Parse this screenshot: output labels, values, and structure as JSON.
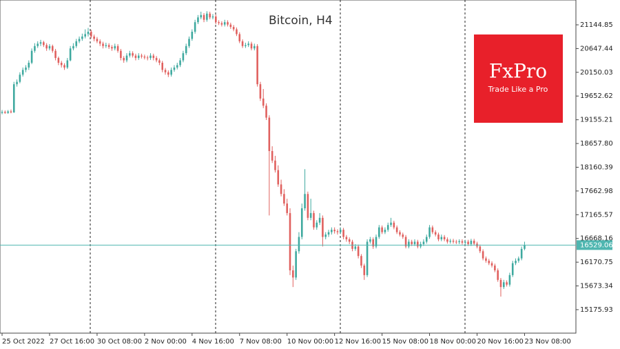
{
  "chart_data": {
    "type": "candlestick",
    "title": "Bitcoin, H4",
    "up_color": "#3ea99f",
    "down_color": "#e0605e",
    "ylim": [
      14684,
      21665
    ],
    "xlim": [
      -0.7,
      193.3
    ],
    "yticks": [
      21144.85,
      20647.44,
      20150.03,
      19652.62,
      19155.21,
      {
        "value": 18657.8,
        "label": "18657.80"
      },
      18160.39,
      17662.98,
      17165.57,
      16668.16,
      16170.75,
      15673.34,
      15175.93
    ],
    "xticks": [
      {
        "value": 0,
        "label": "25 Oct 2022"
      },
      {
        "value": 16,
        "label": "27 Oct 16:00"
      },
      {
        "value": 32,
        "label": "30 Oct 08:00"
      },
      {
        "value": 48,
        "label": "2 Nov 00:00"
      },
      {
        "value": 64,
        "label": "4 Nov 16:00"
      },
      {
        "value": 80,
        "label": "7 Nov 08:00"
      },
      {
        "value": 96,
        "label": "10 Nov 00:00"
      },
      {
        "value": 112,
        "label": "12 Nov 16:00"
      },
      {
        "value": 128,
        "label": "15 Nov 08:00"
      },
      {
        "value": 144,
        "label": "18 Nov 00:00"
      },
      {
        "value": 160,
        "label": "20 Nov 16:00"
      },
      {
        "value": 176,
        "label": "23 Nov 08:00"
      }
    ],
    "last_price": 16529.06,
    "last_price_color": "#4fb6b0",
    "ohlc": [
      [
        19300,
        19360,
        19270,
        19320
      ],
      [
        19320,
        19350,
        19280,
        19300
      ],
      [
        19300,
        19360,
        19280,
        19330
      ],
      [
        19330,
        19370,
        19290,
        19310
      ],
      [
        19310,
        19950,
        19300,
        19900
      ],
      [
        19900,
        20000,
        19850,
        19950
      ],
      [
        19950,
        20150,
        19920,
        20100
      ],
      [
        20100,
        20250,
        20060,
        20200
      ],
      [
        20200,
        20300,
        20150,
        20250
      ],
      [
        20250,
        20400,
        20200,
        20350
      ],
      [
        20350,
        20650,
        20320,
        20600
      ],
      [
        20600,
        20760,
        20560,
        20700
      ],
      [
        20700,
        20800,
        20660,
        20750
      ],
      [
        20750,
        20830,
        20700,
        20780
      ],
      [
        20780,
        20810,
        20680,
        20720
      ],
      [
        20720,
        20760,
        20600,
        20650
      ],
      [
        20650,
        20740,
        20610,
        20700
      ],
      [
        20700,
        20730,
        20560,
        20600
      ],
      [
        20600,
        20640,
        20400,
        20450
      ],
      [
        20450,
        20480,
        20300,
        20350
      ],
      [
        20350,
        20390,
        20250,
        20300
      ],
      [
        20300,
        20340,
        20200,
        20250
      ],
      [
        20250,
        20450,
        20220,
        20400
      ],
      [
        20400,
        20700,
        20380,
        20650
      ],
      [
        20650,
        20760,
        20610,
        20700
      ],
      [
        20700,
        20850,
        20660,
        20800
      ],
      [
        20800,
        20900,
        20760,
        20850
      ],
      [
        20850,
        20960,
        20810,
        20900
      ],
      [
        20900,
        21050,
        20860,
        20950
      ],
      [
        20950,
        21080,
        20900,
        21000
      ],
      [
        21000,
        21040,
        20860,
        20900
      ],
      [
        20900,
        20940,
        20800,
        20850
      ],
      [
        20850,
        20890,
        20760,
        20800
      ],
      [
        20800,
        20840,
        20700,
        20750
      ],
      [
        20750,
        20790,
        20650,
        20700
      ],
      [
        20700,
        20770,
        20660,
        20720
      ],
      [
        20720,
        20760,
        20640,
        20680
      ],
      [
        20680,
        20720,
        20600,
        20650
      ],
      [
        20650,
        20750,
        20610,
        20700
      ],
      [
        20700,
        20740,
        20560,
        20600
      ],
      [
        20600,
        20640,
        20400,
        20450
      ],
      [
        20450,
        20490,
        20350,
        20400
      ],
      [
        20400,
        20550,
        20360,
        20500
      ],
      [
        20500,
        20600,
        20460,
        20550
      ],
      [
        20550,
        20590,
        20460,
        20500
      ],
      [
        20500,
        20540,
        20400,
        20450
      ],
      [
        20450,
        20550,
        20410,
        20500
      ],
      [
        20500,
        20540,
        20440,
        20480
      ],
      [
        20480,
        20520,
        20420,
        20460
      ],
      [
        20460,
        20500,
        20400,
        20450
      ],
      [
        20450,
        20550,
        20410,
        20500
      ],
      [
        20500,
        20540,
        20400,
        20450
      ],
      [
        20450,
        20490,
        20360,
        20400
      ],
      [
        20400,
        20440,
        20300,
        20350
      ],
      [
        20350,
        20390,
        20150,
        20200
      ],
      [
        20200,
        20240,
        20100,
        20150
      ],
      [
        20150,
        20190,
        20050,
        20100
      ],
      [
        20100,
        20250,
        20060,
        20200
      ],
      [
        20200,
        20300,
        20160,
        20250
      ],
      [
        20250,
        20350,
        20210,
        20300
      ],
      [
        20300,
        20450,
        20260,
        20400
      ],
      [
        20400,
        20600,
        20360,
        20550
      ],
      [
        20550,
        20750,
        20510,
        20700
      ],
      [
        20700,
        20900,
        20660,
        20850
      ],
      [
        20850,
        21050,
        20810,
        21000
      ],
      [
        21000,
        21250,
        20960,
        21200
      ],
      [
        21200,
        21350,
        21160,
        21300
      ],
      [
        21300,
        21420,
        21260,
        21350
      ],
      [
        21350,
        21390,
        21200,
        21250
      ],
      [
        21250,
        21430,
        21210,
        21380
      ],
      [
        21380,
        21420,
        21260,
        21300
      ],
      [
        21300,
        21370,
        21260,
        21320
      ],
      [
        21320,
        21360,
        21160,
        21200
      ],
      [
        21200,
        21240,
        21140,
        21180
      ],
      [
        21180,
        21220,
        21110,
        21150
      ],
      [
        21150,
        21250,
        21110,
        21200
      ],
      [
        21200,
        21240,
        21110,
        21150
      ],
      [
        21150,
        21190,
        21060,
        21100
      ],
      [
        21100,
        21140,
        21010,
        21050
      ],
      [
        21050,
        21090,
        20910,
        20950
      ],
      [
        20950,
        20990,
        20760,
        20800
      ],
      [
        20800,
        20840,
        20660,
        20700
      ],
      [
        20700,
        20770,
        20660,
        20720
      ],
      [
        20720,
        20800,
        20680,
        20750
      ],
      [
        20750,
        20790,
        20610,
        20650
      ],
      [
        20650,
        20750,
        20610,
        20700
      ],
      [
        20700,
        20740,
        19850,
        19900
      ],
      [
        19900,
        19950,
        19550,
        19600
      ],
      [
        19600,
        19800,
        19400,
        19450
      ],
      [
        19450,
        19500,
        19150,
        19200
      ],
      [
        19200,
        19250,
        17150,
        18500
      ],
      [
        18500,
        18600,
        18250,
        18300
      ],
      [
        18300,
        18400,
        18050,
        18100
      ],
      [
        18100,
        18200,
        17750,
        17800
      ],
      [
        17800,
        17900,
        17550,
        17600
      ],
      [
        17600,
        17700,
        17350,
        17400
      ],
      [
        17400,
        17500,
        17150,
        17200
      ],
      [
        17200,
        17300,
        15900,
        16000
      ],
      [
        16000,
        16100,
        15650,
        15850
      ],
      [
        15850,
        16450,
        15800,
        16400
      ],
      [
        16400,
        16800,
        16350,
        16700
      ],
      [
        16700,
        17400,
        16650,
        17300
      ],
      [
        17300,
        18120,
        17250,
        17600
      ],
      [
        17600,
        17650,
        17050,
        17100
      ],
      [
        17100,
        17500,
        17050,
        17200
      ],
      [
        17200,
        17250,
        16850,
        16900
      ],
      [
        16900,
        17050,
        16850,
        17000
      ],
      [
        17000,
        17200,
        16950,
        17100
      ],
      [
        17100,
        17150,
        16500,
        16700
      ],
      [
        16700,
        16800,
        16650,
        16750
      ],
      [
        16750,
        16850,
        16700,
        16800
      ],
      [
        16800,
        16900,
        16750,
        16850
      ],
      [
        16850,
        16900,
        16770,
        16820
      ],
      [
        16820,
        16860,
        16750,
        16800
      ],
      [
        16800,
        16900,
        16760,
        16850
      ],
      [
        16850,
        16890,
        16650,
        16700
      ],
      [
        16700,
        16740,
        16600,
        16650
      ],
      [
        16650,
        16690,
        16550,
        16600
      ],
      [
        16600,
        16640,
        16400,
        16450
      ],
      [
        16450,
        16550,
        16410,
        16500
      ],
      [
        16500,
        16540,
        16250,
        16300
      ],
      [
        16300,
        16340,
        16050,
        16100
      ],
      [
        16100,
        16140,
        15800,
        15900
      ],
      [
        15900,
        16650,
        15860,
        16600
      ],
      [
        16600,
        16700,
        16560,
        16650
      ],
      [
        16650,
        16690,
        16450,
        16500
      ],
      [
        16500,
        16750,
        16460,
        16700
      ],
      [
        16700,
        16950,
        16660,
        16900
      ],
      [
        16900,
        16940,
        16760,
        16800
      ],
      [
        16800,
        16900,
        16760,
        16850
      ],
      [
        16850,
        17000,
        16810,
        16950
      ],
      [
        16950,
        17100,
        16910,
        17000
      ],
      [
        17000,
        17040,
        16860,
        16900
      ],
      [
        16900,
        16940,
        16760,
        16800
      ],
      [
        16800,
        16840,
        16710,
        16750
      ],
      [
        16750,
        16790,
        16660,
        16700
      ],
      [
        16700,
        16740,
        16460,
        16500
      ],
      [
        16500,
        16650,
        16460,
        16600
      ],
      [
        16600,
        16640,
        16510,
        16550
      ],
      [
        16550,
        16650,
        16510,
        16600
      ],
      [
        16600,
        16640,
        16460,
        16500
      ],
      [
        16500,
        16600,
        16460,
        16550
      ],
      [
        16550,
        16650,
        16510,
        16600
      ],
      [
        16600,
        16750,
        16560,
        16700
      ],
      [
        16700,
        16950,
        16660,
        16900
      ],
      [
        16900,
        16940,
        16760,
        16800
      ],
      [
        16800,
        16840,
        16710,
        16750
      ],
      [
        16750,
        16790,
        16610,
        16650
      ],
      [
        16650,
        16750,
        16610,
        16700
      ],
      [
        16700,
        16740,
        16610,
        16650
      ],
      [
        16650,
        16690,
        16560,
        16600
      ],
      [
        16600,
        16660,
        16560,
        16620
      ],
      [
        16620,
        16660,
        16560,
        16600
      ],
      [
        16600,
        16640,
        16550,
        16590
      ],
      [
        16590,
        16650,
        16550,
        16610
      ],
      [
        16610,
        16650,
        16540,
        16580
      ],
      [
        16580,
        16640,
        16540,
        16600
      ],
      [
        16600,
        16640,
        16510,
        16550
      ],
      [
        16550,
        16660,
        16510,
        16620
      ],
      [
        16620,
        16660,
        16520,
        16560
      ],
      [
        16560,
        16600,
        16460,
        16500
      ],
      [
        16500,
        16540,
        16360,
        16400
      ],
      [
        16400,
        16440,
        16210,
        16250
      ],
      [
        16250,
        16290,
        16160,
        16200
      ],
      [
        16200,
        16240,
        16110,
        16150
      ],
      [
        16150,
        16190,
        16060,
        16100
      ],
      [
        16100,
        16140,
        15960,
        16000
      ],
      [
        16000,
        16040,
        15760,
        15800
      ],
      [
        15800,
        15840,
        15450,
        15650
      ],
      [
        15650,
        15800,
        15610,
        15750
      ],
      [
        15750,
        15790,
        15660,
        15700
      ],
      [
        15700,
        15950,
        15660,
        15900
      ],
      [
        15900,
        16200,
        15860,
        16150
      ],
      [
        16150,
        16250,
        16110,
        16200
      ],
      [
        16200,
        16290,
        16160,
        16250
      ],
      [
        16250,
        16500,
        16210,
        16450
      ],
      [
        16450,
        16600,
        16420,
        16529.06
      ]
    ]
  },
  "logo": {
    "brand": "FxPro",
    "tagline": "Trade Like a Pro"
  }
}
